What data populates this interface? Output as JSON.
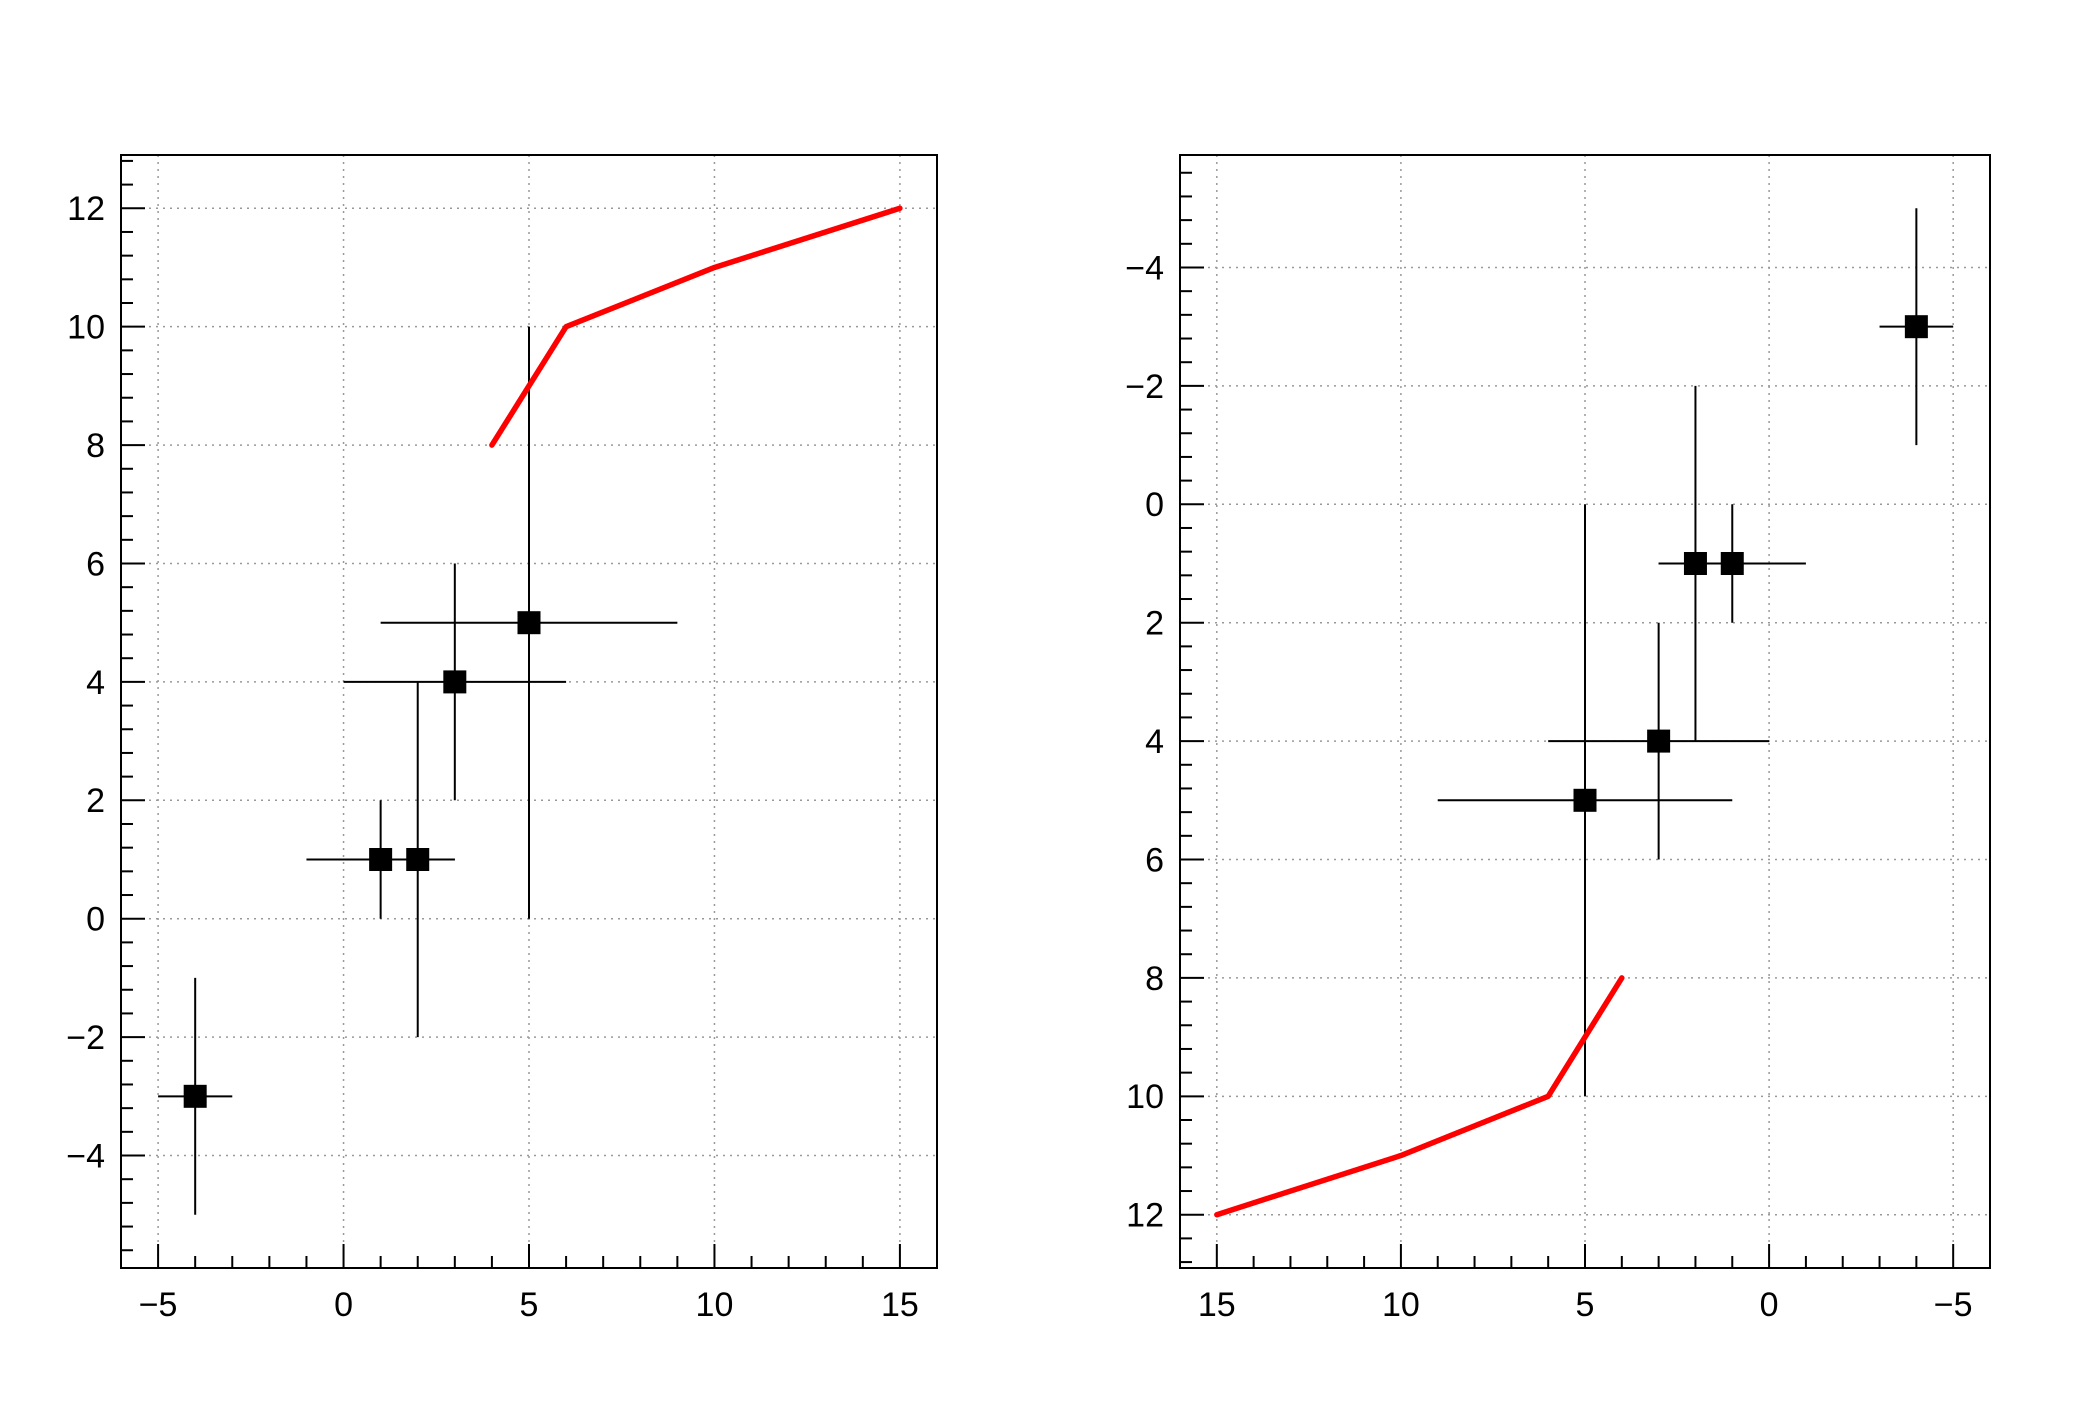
{
  "canvas": {
    "background": "#ffffff",
    "title": ""
  },
  "chart_data": [
    {
      "name": "left-plot",
      "type": "scatter",
      "title": "",
      "xlabel": "",
      "ylabel": "",
      "xlim": [
        -6,
        16
      ],
      "ylim": [
        -5.9,
        12.9
      ],
      "x_reversed": false,
      "y_reversed": false,
      "grid": true,
      "grid_color": "#999999",
      "axis_color": "#000000",
      "x_minor_step": 1,
      "y_minor_step": 0.4,
      "x_ticks": [
        {
          "v": -5,
          "label": "−5"
        },
        {
          "v": 0,
          "label": "0"
        },
        {
          "v": 5,
          "label": "5"
        },
        {
          "v": 10,
          "label": "10"
        },
        {
          "v": 15,
          "label": "15"
        }
      ],
      "y_ticks": [
        {
          "v": 12,
          "label": "12"
        },
        {
          "v": 10,
          "label": "10"
        },
        {
          "v": 8,
          "label": "8"
        },
        {
          "v": 6,
          "label": "6"
        },
        {
          "v": 4,
          "label": "4"
        },
        {
          "v": 2,
          "label": "2"
        },
        {
          "v": 0,
          "label": "0"
        },
        {
          "v": -2,
          "label": "−2"
        },
        {
          "v": -4,
          "label": "−4"
        }
      ],
      "series": [
        {
          "name": "data-points",
          "type": "scatter_errorbars",
          "marker": "filled-square",
          "marker_color": "#000000",
          "points": [
            {
              "x": -4,
              "y": -3,
              "ex": 1,
              "ey": 2
            },
            {
              "x": 1,
              "y": 1,
              "ex": 2,
              "ey": 1
            },
            {
              "x": 2,
              "y": 1,
              "ex": 1,
              "ey": 3
            },
            {
              "x": 3,
              "y": 4,
              "ex": 3,
              "ey": 2
            },
            {
              "x": 5,
              "y": 5,
              "ex": 4,
              "ey": 5
            }
          ]
        },
        {
          "name": "red-line",
          "type": "line",
          "color": "#ff0000",
          "points": [
            {
              "x": 4,
              "y": 8
            },
            {
              "x": 5,
              "y": 9
            },
            {
              "x": 6,
              "y": 10
            },
            {
              "x": 10,
              "y": 11
            },
            {
              "x": 15,
              "y": 12
            }
          ]
        }
      ]
    },
    {
      "name": "right-plot",
      "type": "scatter",
      "title": "",
      "xlabel": "",
      "ylabel": "",
      "xlim": [
        -6,
        16
      ],
      "ylim": [
        -5.9,
        12.9
      ],
      "x_reversed": true,
      "y_reversed": true,
      "grid": true,
      "grid_color": "#999999",
      "axis_color": "#000000",
      "x_minor_step": 1,
      "y_minor_step": 0.4,
      "x_ticks": [
        {
          "v": 15,
          "label": "15"
        },
        {
          "v": 10,
          "label": "10"
        },
        {
          "v": 5,
          "label": "5"
        },
        {
          "v": 0,
          "label": "0"
        },
        {
          "v": -5,
          "label": "−5"
        }
      ],
      "y_ticks": [
        {
          "v": -4,
          "label": "−4"
        },
        {
          "v": -2,
          "label": "−2"
        },
        {
          "v": 0,
          "label": "0"
        },
        {
          "v": 2,
          "label": "2"
        },
        {
          "v": 4,
          "label": "4"
        },
        {
          "v": 6,
          "label": "6"
        },
        {
          "v": 8,
          "label": "8"
        },
        {
          "v": 10,
          "label": "10"
        },
        {
          "v": 12,
          "label": "12"
        }
      ],
      "series": [
        {
          "name": "data-points",
          "type": "scatter_errorbars",
          "marker": "filled-square",
          "marker_color": "#000000",
          "points": [
            {
              "x": -4,
              "y": -3,
              "ex": 1,
              "ey": 2
            },
            {
              "x": 1,
              "y": 1,
              "ex": 2,
              "ey": 1
            },
            {
              "x": 2,
              "y": 1,
              "ex": 1,
              "ey": 3
            },
            {
              "x": 3,
              "y": 4,
              "ex": 3,
              "ey": 2
            },
            {
              "x": 5,
              "y": 5,
              "ex": 4,
              "ey": 5
            }
          ]
        },
        {
          "name": "red-line",
          "type": "line",
          "color": "#ff0000",
          "points": [
            {
              "x": 4,
              "y": 8
            },
            {
              "x": 5,
              "y": 9
            },
            {
              "x": 6,
              "y": 10
            },
            {
              "x": 10,
              "y": 11
            },
            {
              "x": 15,
              "y": 12
            }
          ]
        }
      ]
    }
  ]
}
